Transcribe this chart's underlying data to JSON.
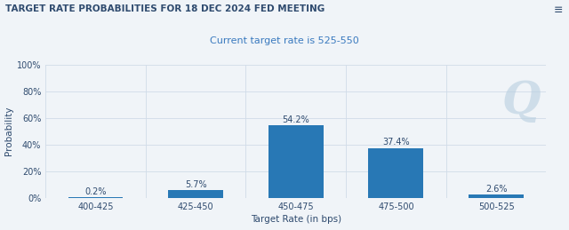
{
  "title": "TARGET RATE PROBABILITIES FOR 18 DEC 2024 FED MEETING",
  "subtitle": "Current target rate is 525-550",
  "categories": [
    "400-425",
    "425-450",
    "450-475",
    "475-500",
    "500-525"
  ],
  "values": [
    0.2,
    5.7,
    54.2,
    37.4,
    2.6
  ],
  "bar_color": "#2878b5",
  "xlabel": "Target Rate (in bps)",
  "ylabel": "Probability",
  "ylim": [
    0,
    100
  ],
  "yticks": [
    0,
    20,
    40,
    60,
    80,
    100
  ],
  "ytick_labels": [
    "0%",
    "20%",
    "40%",
    "60%",
    "80%",
    "100%"
  ],
  "title_color": "#2e4a6e",
  "subtitle_color": "#3a7abf",
  "title_fontsize": 7.5,
  "subtitle_fontsize": 8,
  "xlabel_fontsize": 7.5,
  "ylabel_fontsize": 7.5,
  "tick_fontsize": 7,
  "background_color": "#f0f4f8",
  "grid_color": "#d0dce8",
  "bar_label_fontsize": 7,
  "watermark": "Q",
  "menu_icon": "≡"
}
